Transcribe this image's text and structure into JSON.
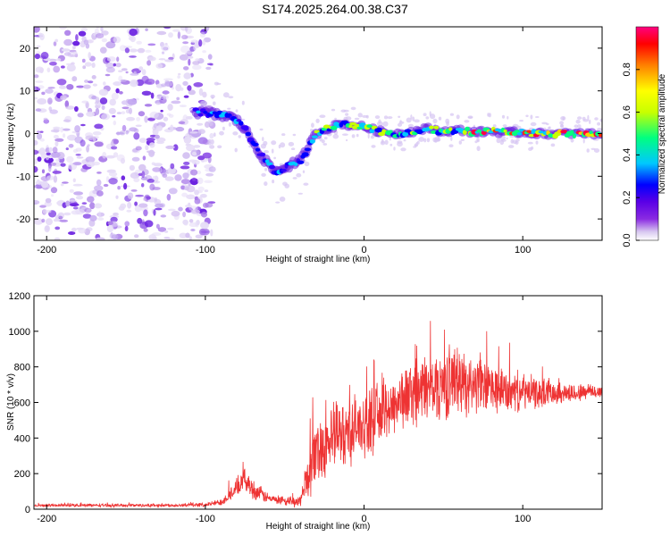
{
  "title": "S174.2025.264.00.38.C37",
  "chart_data": [
    {
      "type": "heatmap",
      "name": "spectrogram",
      "xlabel": "Height of straight line (km)",
      "ylabel": "Frequency (Hz)",
      "xlim": [
        -208,
        150
      ],
      "ylim": [
        -25,
        25
      ],
      "xticks": [
        -200,
        -100,
        0,
        100
      ],
      "yticks": [
        -20,
        -10,
        0,
        10,
        20
      ],
      "ridge": {
        "x": [
          -105,
          -95,
          -85,
          -80,
          -75,
          -70,
          -65,
          -60,
          -55,
          -50,
          -45,
          -40,
          -35,
          -30,
          -25,
          -20,
          -15,
          -10,
          -5,
          0,
          10,
          20,
          30,
          40,
          50,
          60,
          70,
          80,
          90,
          100,
          110,
          120,
          130,
          140,
          150
        ],
        "y": [
          5,
          4.5,
          4,
          3,
          1,
          -2,
          -5,
          -7.5,
          -9,
          -8,
          -7,
          -6.5,
          -3,
          0,
          1,
          1.5,
          2.5,
          2,
          2,
          1.5,
          0.5,
          0,
          0.5,
          1.2,
          0.5,
          0.8,
          0.3,
          0.5,
          0.2,
          0.3,
          0,
          0,
          0,
          0,
          0
        ]
      },
      "colorbar": {
        "label": "Normalized spectral amplitude",
        "range": [
          0,
          1
        ],
        "ticks": [
          0.0,
          0.2,
          0.4,
          0.6,
          0.8
        ],
        "colors": [
          "#ffffff",
          "#d8c8f0",
          "#8a2be2",
          "#5a00e6",
          "#0000ff",
          "#00c8ff",
          "#00ff80",
          "#c8ff00",
          "#ffff00",
          "#ff8000",
          "#ff0000",
          "#ff0080"
        ]
      }
    },
    {
      "type": "line",
      "name": "snr",
      "xlabel": "Height of straight line (km)",
      "ylabel": "SNR (10 * v/v)",
      "xlim": [
        -208,
        150
      ],
      "ylim": [
        0,
        1200
      ],
      "xticks": [
        -200,
        -100,
        0,
        100
      ],
      "yticks": [
        0,
        200,
        400,
        600,
        800,
        1000,
        1200
      ],
      "color": "#ee3333",
      "envelope": {
        "x": [
          -208,
          -120,
          -100,
          -90,
          -80,
          -75,
          -70,
          -60,
          -50,
          -40,
          -35,
          -30,
          -20,
          -10,
          0,
          10,
          20,
          30,
          40,
          50,
          55,
          60,
          70,
          80,
          90,
          100,
          110,
          120,
          130,
          140,
          150
        ],
        "mean": [
          22,
          22,
          25,
          40,
          120,
          170,
          110,
          60,
          40,
          45,
          200,
          330,
          400,
          440,
          470,
          530,
          600,
          650,
          680,
          700,
          720,
          720,
          700,
          680,
          660,
          660,
          650,
          660,
          650,
          660,
          660
        ],
        "spread": [
          8,
          10,
          12,
          20,
          60,
          60,
          60,
          30,
          20,
          40,
          150,
          200,
          200,
          200,
          190,
          190,
          180,
          190,
          200,
          210,
          220,
          200,
          170,
          150,
          130,
          110,
          90,
          70,
          60,
          50,
          40
        ]
      }
    }
  ]
}
